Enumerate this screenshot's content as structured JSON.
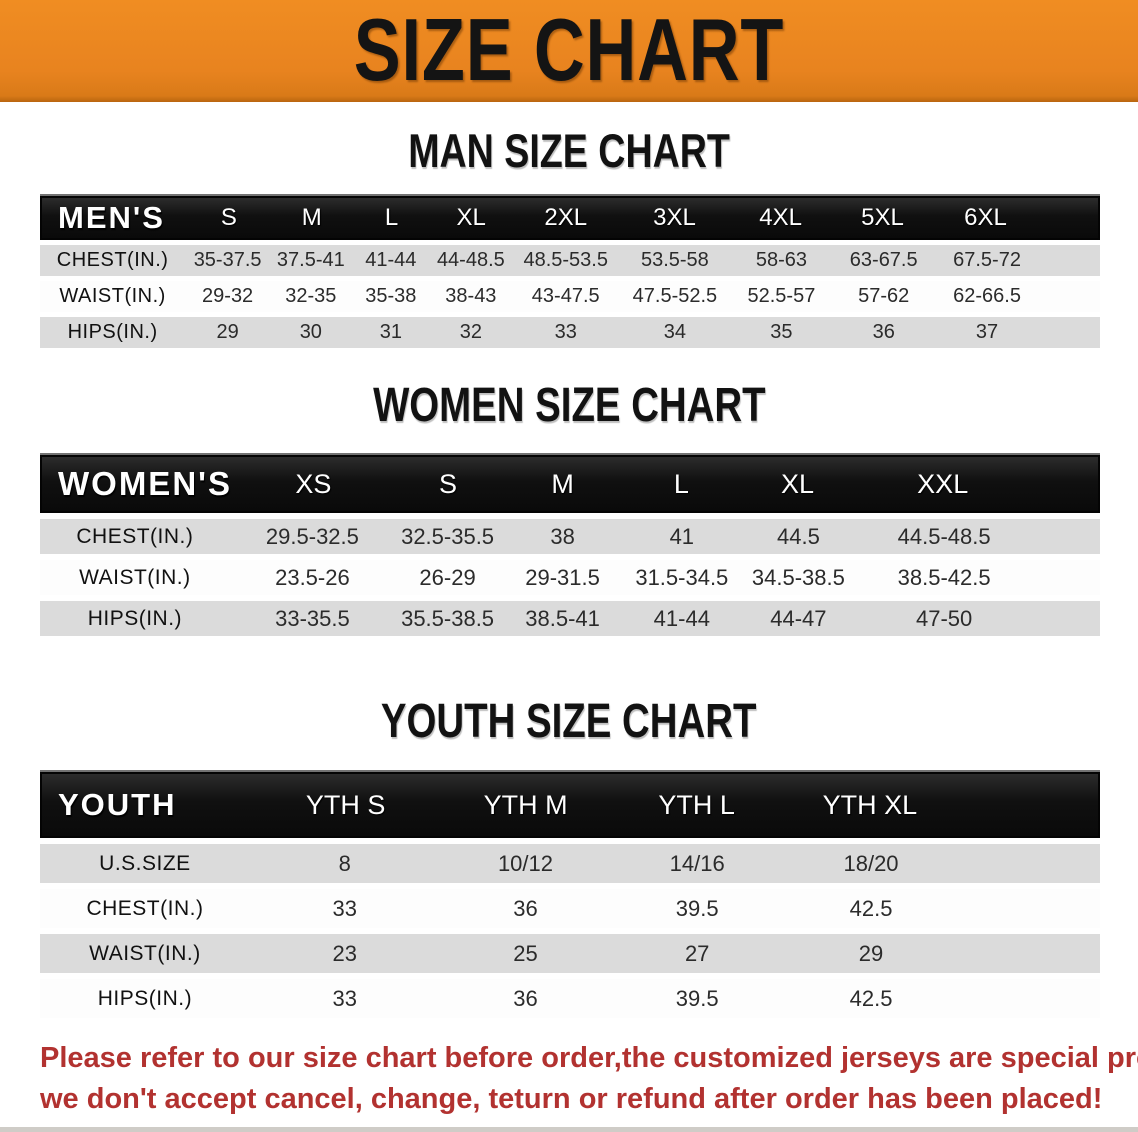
{
  "banner": {
    "title": "SIZE CHART",
    "bg_color": "#E8831F",
    "text_color": "#141414"
  },
  "sections": [
    {
      "id": "men",
      "heading": "MAN SIZE CHART",
      "corner_label": "MEN'S",
      "columns": [
        "S",
        "M",
        "L",
        "XL",
        "2XL",
        "3XL",
        "4XL",
        "5XL",
        "6XL"
      ],
      "rows": [
        {
          "label": "CHEST(IN.)",
          "values": [
            "35-37.5",
            "37.5-41",
            "41-44",
            "44-48.5",
            "48.5-53.5",
            "53.5-58",
            "58-63",
            "63-67.5",
            "67.5-72"
          ]
        },
        {
          "label": "WAIST(IN.)",
          "values": [
            "29-32",
            "32-35",
            "35-38",
            "38-43",
            "43-47.5",
            "47.5-52.5",
            "52.5-57",
            "57-62",
            "62-66.5"
          ]
        },
        {
          "label": "HIPS(IN.)",
          "values": [
            "29",
            "30",
            "31",
            "32",
            "33",
            "34",
            "35",
            "36",
            "37"
          ]
        }
      ]
    },
    {
      "id": "women",
      "heading": "WOMEN SIZE CHART",
      "corner_label": "WOMEN'S",
      "columns": [
        "XS",
        "S",
        "M",
        "L",
        "XL",
        "XXL"
      ],
      "rows": [
        {
          "label": "CHEST(IN.)",
          "values": [
            "29.5-32.5",
            "32.5-35.5",
            "38",
            "41",
            "44.5",
            "44.5-48.5"
          ]
        },
        {
          "label": "WAIST(IN.)",
          "values": [
            "23.5-26",
            "26-29",
            "29-31.5",
            "31.5-34.5",
            "34.5-38.5",
            "38.5-42.5"
          ]
        },
        {
          "label": "HIPS(IN.)",
          "values": [
            "33-35.5",
            "35.5-38.5",
            "38.5-41",
            "41-44",
            "44-47",
            "47-50"
          ]
        }
      ]
    },
    {
      "id": "youth",
      "heading": "YOUTH SIZE CHART",
      "corner_label": "YOUTH",
      "columns": [
        "YTH S",
        "YTH M",
        "YTH L",
        "YTH XL"
      ],
      "rows": [
        {
          "label": "U.S.SIZE",
          "values": [
            "8",
            "10/12",
            "14/16",
            "18/20"
          ]
        },
        {
          "label": "CHEST(IN.)",
          "values": [
            "33",
            "36",
            "39.5",
            "42.5"
          ]
        },
        {
          "label": "WAIST(IN.)",
          "values": [
            "23",
            "25",
            "27",
            "29"
          ]
        },
        {
          "label": "HIPS(IN.)",
          "values": [
            "33",
            "36",
            "39.5",
            "42.5"
          ]
        }
      ]
    }
  ],
  "footer": {
    "color": "#B23230",
    "lines": [
      "Please refer to our size chart before order,the customized jerseys are special products,",
      "we don't accept cancel, change, teturn or refund after order has been placed!"
    ]
  }
}
